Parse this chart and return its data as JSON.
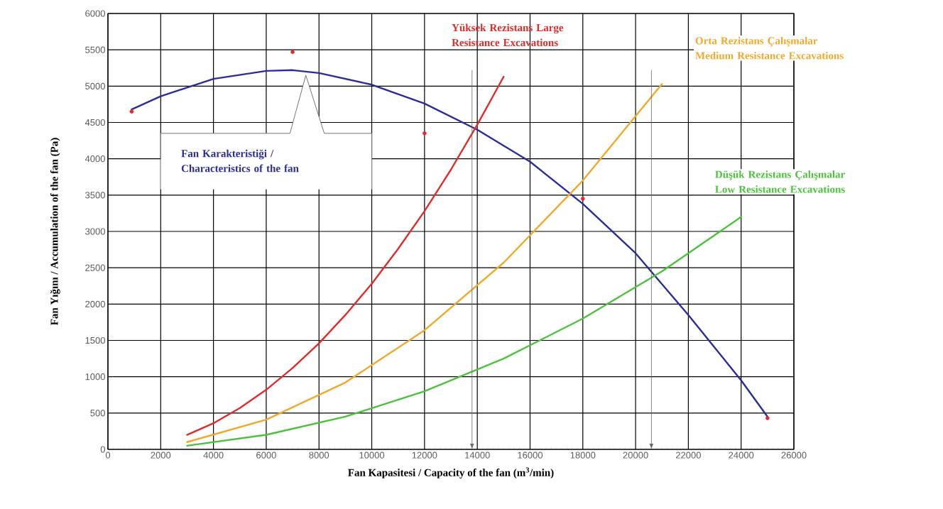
{
  "chart_data": {
    "type": "line",
    "xlabel": "Fan Kapasitesi / Capacity of the fan (m$^{3}$/min)",
    "ylabel": "Fan Yığını / Accumulation of the fan (Pa)",
    "xlim": [
      0,
      26000
    ],
    "ylim": [
      0,
      6000
    ],
    "xticks": [
      0,
      2000,
      4000,
      6000,
      8000,
      10000,
      12000,
      14000,
      16000,
      18000,
      20000,
      22000,
      24000,
      26000
    ],
    "yticks": [
      0,
      500,
      1000,
      1500,
      2000,
      2500,
      3000,
      3500,
      4000,
      4500,
      5000,
      5500,
      6000
    ],
    "grid": true,
    "series": [
      {
        "name": "Fan Karakteristiği / Characteristics of the fan",
        "color": "#2b2b9a",
        "x": [
          900,
          2000,
          4000,
          6000,
          7000,
          8000,
          10000,
          12000,
          14000,
          16000,
          18000,
          20000,
          22000,
          24000,
          25000
        ],
        "values": [
          4680,
          4860,
          5100,
          5210,
          5220,
          5180,
          5020,
          4760,
          4400,
          3960,
          3380,
          2700,
          1850,
          950,
          450
        ]
      },
      {
        "name": "Yüksek Rezistans Large Resistance Excavations",
        "color": "#e02b2b",
        "x": [
          3000,
          4000,
          5000,
          6000,
          7000,
          8000,
          9000,
          10000,
          11000,
          12000,
          13000,
          14000,
          15000
        ],
        "values": [
          200,
          360,
          570,
          820,
          1120,
          1460,
          1850,
          2280,
          2760,
          3280,
          3850,
          4470,
          5130
        ]
      },
      {
        "name": "Orta Rezistans Çalışmalar Medium Resistance Excavations",
        "color": "#f0a92a",
        "x": [
          3000,
          6000,
          9000,
          12000,
          15000,
          18000,
          21000
        ],
        "values": [
          100,
          410,
          920,
          1640,
          2570,
          3700,
          5030
        ]
      },
      {
        "name": "Düşük Rezistans Çalışmalar Low Resistance Excavations",
        "color": "#4cc23c",
        "x": [
          3000,
          6000,
          9000,
          12000,
          15000,
          18000,
          21000,
          24000
        ],
        "values": [
          50,
          200,
          450,
          800,
          1250,
          1800,
          2450,
          3200
        ]
      },
      {
        "type": "scatter",
        "marker": "circle",
        "color": "#e02b2b",
        "x": [
          900,
          7000,
          12000,
          18000,
          25000
        ],
        "values": [
          4650,
          5470,
          4350,
          3450,
          430
        ]
      }
    ],
    "ref_lines": [
      {
        "axis": "x",
        "value": 13800
      },
      {
        "axis": "x",
        "value": 20600
      }
    ]
  }
}
